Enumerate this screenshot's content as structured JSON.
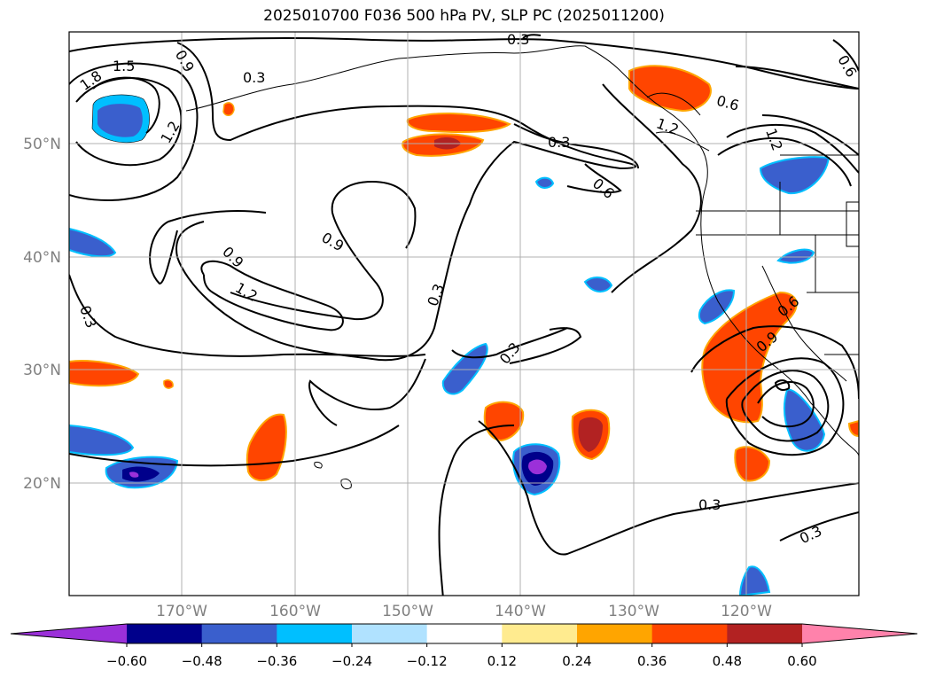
{
  "title": "2025010700 F036 500 hPa PV, SLP PC (2025011200)",
  "lat_labels": [
    "50°N",
    "40°N",
    "30°N",
    "20°N"
  ],
  "lon_labels": [
    "170°W",
    "160°W",
    "150°W",
    "140°W",
    "130°W",
    "120°W"
  ],
  "contour_labels": [
    "0.3",
    "1.5",
    "1.8",
    "0.9",
    "1.2",
    "0.3",
    "0.6",
    "0.3",
    "0.6",
    "0.9",
    "0.9",
    "1.2",
    "0.3",
    "0.3",
    "0.3",
    "0.6",
    "0.9",
    "1.2",
    "0.6",
    "1.2",
    "0.3",
    "0.3"
  ],
  "colorbar": {
    "ticks": [
      "−0.60",
      "−0.48",
      "−0.36",
      "−0.24",
      "−0.12",
      "0.12",
      "0.24",
      "0.36",
      "0.48",
      "0.60"
    ],
    "colors": [
      "#9b30d9",
      "#00008b",
      "#3a5fcd",
      "#00bfff",
      "#b0e2ff",
      "#ffffff",
      "#ffeb8f",
      "#ffa500",
      "#ff4500",
      "#b22222",
      "#ff82ab"
    ]
  },
  "colors": {
    "neg_deep": "#9b30d9",
    "neg_navy": "#00008b",
    "neg_blue": "#3a5fcd",
    "neg_cyan": "#00bfff",
    "pos_yellow": "#ffeb8f",
    "pos_orange": "#ffa500",
    "pos_red": "#ff4500",
    "pos_brick": "#b22222"
  }
}
